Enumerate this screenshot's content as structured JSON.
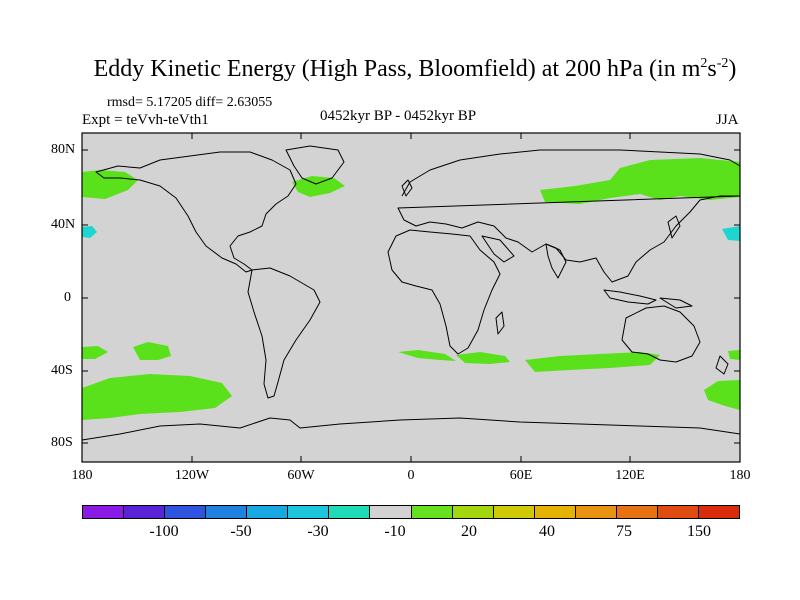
{
  "title": {
    "main": "Eddy Kinetic Energy (High Pass, Bloomfield) at 200 hPa (in m",
    "sup1": "2",
    "mid": "s",
    "sup2": "-2",
    "close": ")"
  },
  "stats": "rmsd= 5.17205 diff= 2.63055",
  "experiment": "Expt = teVvh-teVth1",
  "period": "0452kyr BP - 0452kyr BP",
  "season": "JJA",
  "lat_ticks": [
    "80N",
    "40N",
    "0",
    "40S",
    "80S"
  ],
  "lon_ticks": [
    "180",
    "120W",
    "60W",
    "0",
    "60E",
    "120E",
    "180"
  ],
  "colorbar": {
    "colors": [
      "#8a1ae6",
      "#5a23d6",
      "#2e54de",
      "#1f82e0",
      "#18a8e2",
      "#1cc6dc",
      "#1fdcb8",
      "#d3d3d3",
      "#66e01f",
      "#a4d60e",
      "#cfc906",
      "#e6b400",
      "#e89312",
      "#e67212",
      "#e04c10",
      "#da2c0c"
    ],
    "labels": [
      "-100",
      "-50",
      "-30",
      "-10",
      "20",
      "40",
      "75",
      "150"
    ]
  },
  "map": {
    "land_outline_color": "#000000",
    "ocean_fill": "#d3d3d3",
    "positive_color": "#5be01c",
    "negative_color": "#1cd6cf"
  }
}
